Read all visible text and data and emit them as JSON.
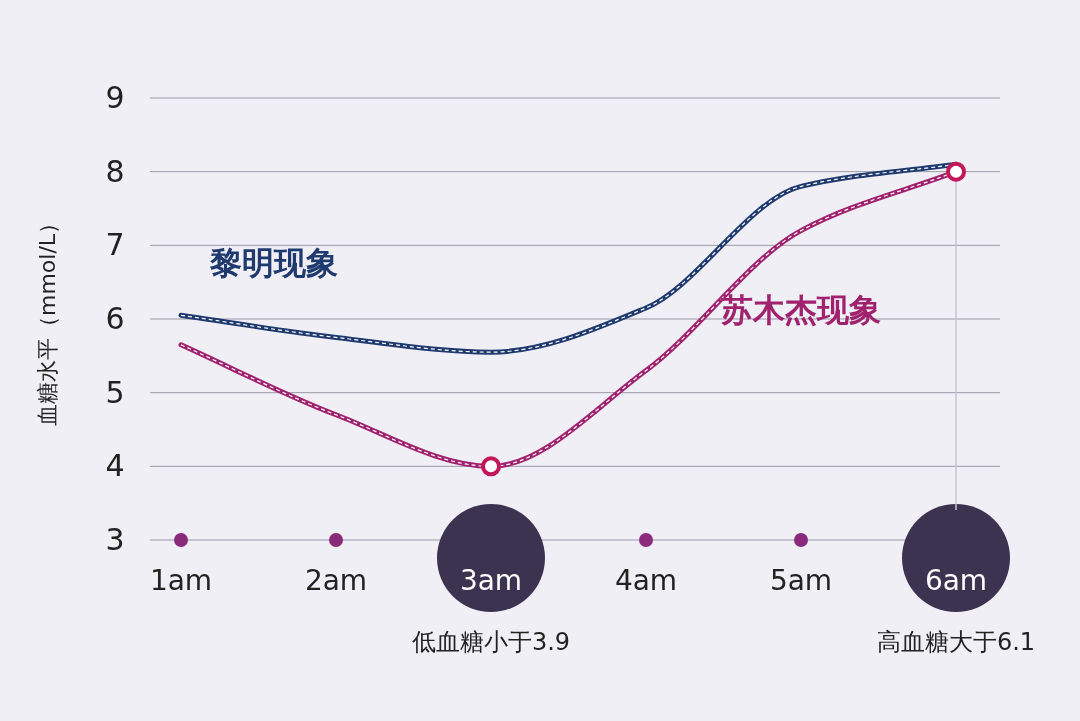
{
  "chart_data": {
    "type": "line",
    "ylabel": "血糖水平（mmol/L）",
    "categories": [
      "1am",
      "2am",
      "3am",
      "4am",
      "5am",
      "6am"
    ],
    "series": [
      {
        "name": "黎明现象",
        "color": "#1f3a6e",
        "values": [
          6.05,
          5.75,
          5.55,
          6.15,
          7.8,
          8.1
        ]
      },
      {
        "name": "苏木杰现象",
        "color": "#a0226e",
        "values": [
          5.65,
          4.7,
          4.0,
          5.3,
          7.2,
          8.0
        ]
      }
    ],
    "ylim": [
      3,
      9
    ],
    "yticks": [
      3,
      4,
      5,
      6,
      7,
      8,
      9
    ],
    "grid": "y",
    "ref_lines": [
      {
        "axis": "x",
        "value": "6am",
        "color": "#c9c3d3"
      }
    ],
    "line_style": "solid",
    "annotations": [
      "低血糖小于3.9",
      "高血糖大于6.1"
    ]
  }
}
